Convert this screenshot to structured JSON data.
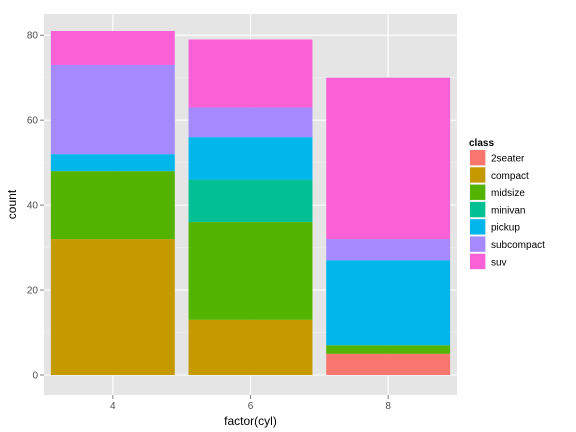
{
  "chart_data": {
    "type": "bar",
    "stacked": true,
    "categories": [
      "4",
      "6",
      "8"
    ],
    "xlabel": "factor(cyl)",
    "ylabel": "count",
    "ylim": [
      0,
      85
    ],
    "yticks": [
      0,
      20,
      40,
      60,
      80
    ],
    "grid": true,
    "legend_title": "class",
    "legend_position": "right",
    "series": [
      {
        "name": "2seater",
        "color": "#F8766D",
        "values": [
          0,
          0,
          5
        ]
      },
      {
        "name": "compact",
        "color": "#C49A00",
        "values": [
          32,
          13,
          0
        ]
      },
      {
        "name": "midsize",
        "color": "#53B400",
        "values": [
          16,
          23,
          2
        ]
      },
      {
        "name": "minivan",
        "color": "#00C094",
        "values": [
          0,
          10,
          0
        ]
      },
      {
        "name": "pickup",
        "color": "#00B6EB",
        "values": [
          4,
          10,
          20
        ]
      },
      {
        "name": "subcompact",
        "color": "#A58AFF",
        "values": [
          21,
          7,
          5
        ]
      },
      {
        "name": "suv",
        "color": "#FB61D7",
        "values": [
          8,
          16,
          38
        ]
      }
    ]
  }
}
